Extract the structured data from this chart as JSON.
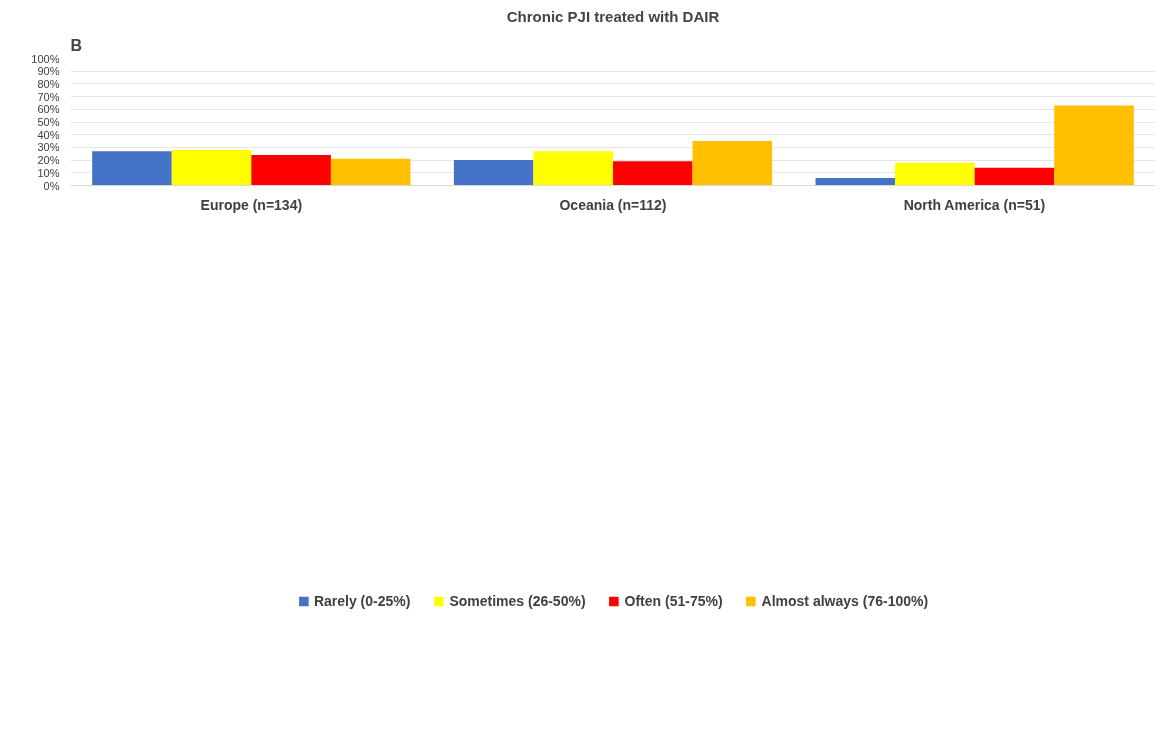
{
  "chart_data": {
    "type": "bar",
    "title": "Chronic PJI treated with DAIR",
    "annotations": [
      "B"
    ],
    "categories": [
      "Europe (n=134)",
      "Oceania (n=112)",
      "North America (n=51)"
    ],
    "series": [
      {
        "name": "Rarely (0-25%)",
        "color": "#4472c4",
        "values": [
          27,
          20,
          6
        ]
      },
      {
        "name": "Sometimes (26-50%)",
        "color": "#ffff00",
        "values": [
          28,
          27,
          18
        ]
      },
      {
        "name": "Often (51-75%)",
        "color": "#ff0000",
        "values": [
          24,
          19,
          14
        ]
      },
      {
        "name": "Almost always (76-100%)",
        "color": "#ffc000",
        "values": [
          21,
          35,
          63
        ]
      }
    ],
    "ylim": [
      0,
      100
    ],
    "yticks": [
      {
        "value": 0,
        "label": "0%"
      },
      {
        "value": 10,
        "label": "10%"
      },
      {
        "value": 20,
        "label": "20%"
      },
      {
        "value": 30,
        "label": "30%"
      },
      {
        "value": 40,
        "label": "40%"
      },
      {
        "value": 50,
        "label": "50%"
      },
      {
        "value": 60,
        "label": "60%"
      },
      {
        "value": 70,
        "label": "70%"
      },
      {
        "value": 80,
        "label": "80%"
      },
      {
        "value": 90,
        "label": "90%"
      },
      {
        "value": 100,
        "label": "100%"
      }
    ],
    "grid": "y",
    "legend": "bottom"
  }
}
